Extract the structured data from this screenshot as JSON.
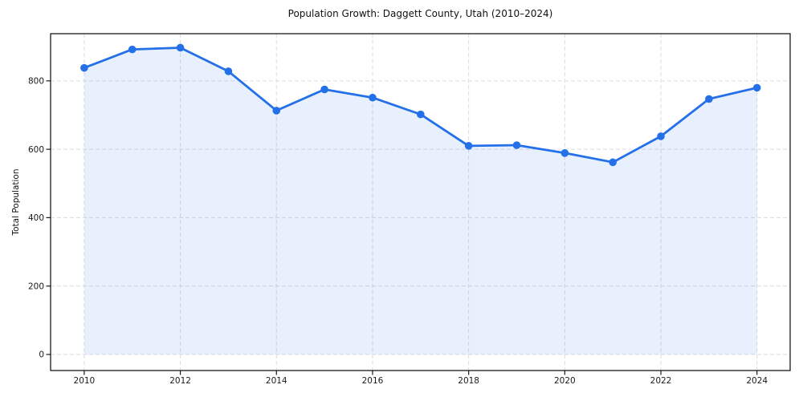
{
  "figure": {
    "title": "Population Growth: Daggett County, Utah (2010–2024)",
    "ylabel": "Total Population"
  },
  "chart_data": {
    "type": "line",
    "title": "Population Growth: Daggett County, Utah (2010–2024)",
    "xlabel": "",
    "ylabel": "Total Population",
    "series": [
      {
        "name": "Total Population",
        "x": [
          2010,
          2011,
          2012,
          2013,
          2014,
          2015,
          2016,
          2017,
          2018,
          2019,
          2020,
          2021,
          2022,
          2023,
          2024
        ],
        "values": [
          838,
          892,
          897,
          828,
          713,
          775,
          751,
          702,
          610,
          612,
          589,
          562,
          638,
          747,
          780
        ]
      }
    ],
    "xticks": [
      2010,
      2012,
      2014,
      2016,
      2018,
      2020,
      2022,
      2024
    ],
    "yticks": [
      0,
      200,
      400,
      600,
      800
    ],
    "xlim": [
      2009.3,
      2024.69
    ],
    "ylim": [
      -47,
      938
    ],
    "grid": true,
    "grid_style": "dashed",
    "legend": false,
    "marker": "circle",
    "area_fill": true,
    "area_baseline": 0,
    "colors": {
      "line": "#2470e8",
      "fill_opacity": 0.1,
      "grid": "#dcdcdc",
      "spine": "#1a1a1a",
      "text": "#1a1a1a"
    }
  }
}
